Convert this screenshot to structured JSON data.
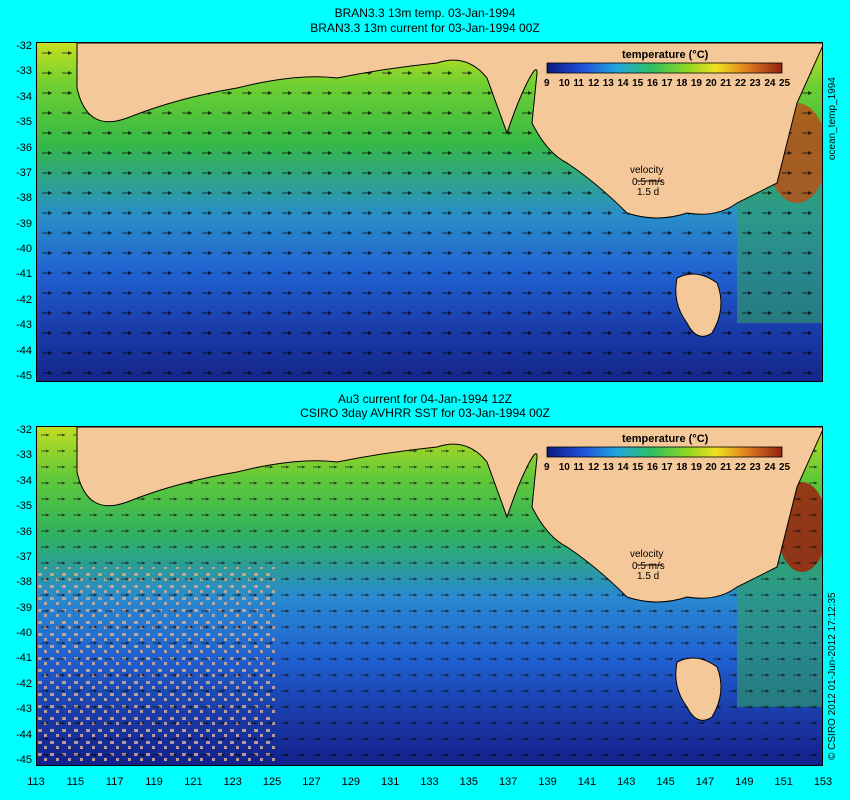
{
  "top_panel": {
    "title_line1": "BRAN3.3 13m temp. 03-Jan-1994",
    "title_line2": "BRAN3.3 13m current for 03-Jan-1994 00Z",
    "colorbar_title": "temperature (°C)",
    "colorbar_ticks": [
      "9",
      "10",
      "11",
      "12",
      "13",
      "14",
      "15",
      "16",
      "17",
      "18",
      "19",
      "20",
      "21",
      "22",
      "23",
      "24",
      "25"
    ],
    "velocity_label": "velocity",
    "velocity_scale": "0.5 m/s",
    "velocity_scale2": "1.5 d",
    "side_label": "ocean_temp_1994"
  },
  "bottom_panel": {
    "title_line1": "Au3 current for 04-Jan-1994 12Z",
    "title_line2": "CSIRO 3day AVHRR SST for 03-Jan-1994 00Z",
    "colorbar_title": "temperature (°C)",
    "colorbar_ticks": [
      "9",
      "10",
      "11",
      "12",
      "13",
      "14",
      "15",
      "16",
      "17",
      "18",
      "19",
      "20",
      "21",
      "22",
      "23",
      "24",
      "25"
    ],
    "velocity_label": "velocity",
    "velocity_scale": "0.5 m/s",
    "velocity_scale2": "1.5 d",
    "side_label": "© CSIRO 2012  01-Jun-2012 17:12:35"
  },
  "y_axis_labels": [
    "-32",
    "-33",
    "-34",
    "-35",
    "-36",
    "-37",
    "-38",
    "-39",
    "-40",
    "-41",
    "-42",
    "-43",
    "-44",
    "-45"
  ],
  "x_axis_labels": [
    "113",
    "115",
    "117",
    "119",
    "121",
    "123",
    "125",
    "127",
    "129",
    "131",
    "133",
    "135",
    "137",
    "139",
    "141",
    "143",
    "145",
    "147",
    "149",
    "151",
    "153"
  ],
  "colors": {
    "background": "#00ffff",
    "land": "#f5c89a",
    "cloud": "#c9a995",
    "cold": "#1a2fa0",
    "mid": "#2fbf3a",
    "warm": "#e0a020",
    "hot": "#9a2a10"
  }
}
